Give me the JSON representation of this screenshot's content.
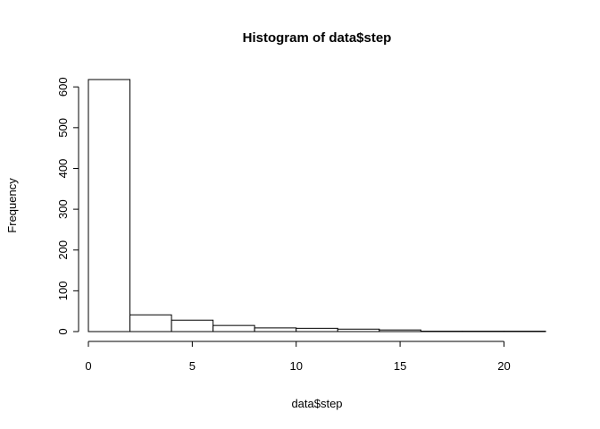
{
  "chart_data": {
    "type": "bar",
    "title": "Histogram of data$step",
    "xlabel": "data$step",
    "ylabel": "Frequency",
    "bins": [
      {
        "x0": 0,
        "x1": 2,
        "value": 618
      },
      {
        "x0": 2,
        "x1": 4,
        "value": 41
      },
      {
        "x0": 4,
        "x1": 6,
        "value": 28
      },
      {
        "x0": 6,
        "x1": 8,
        "value": 15
      },
      {
        "x0": 8,
        "x1": 10,
        "value": 9
      },
      {
        "x0": 10,
        "x1": 12,
        "value": 8
      },
      {
        "x0": 12,
        "x1": 14,
        "value": 6
      },
      {
        "x0": 14,
        "x1": 16,
        "value": 4
      },
      {
        "x0": 16,
        "x1": 18,
        "value": 1
      },
      {
        "x0": 18,
        "x1": 20,
        "value": 1
      },
      {
        "x0": 20,
        "x1": 22,
        "value": 1
      }
    ],
    "xticks": [
      0,
      5,
      10,
      15,
      20
    ],
    "yticks": [
      0,
      100,
      200,
      300,
      400,
      500,
      600
    ],
    "xlim": [
      0,
      22
    ],
    "ylim": [
      0,
      618
    ],
    "grid": false,
    "legend": "none"
  }
}
